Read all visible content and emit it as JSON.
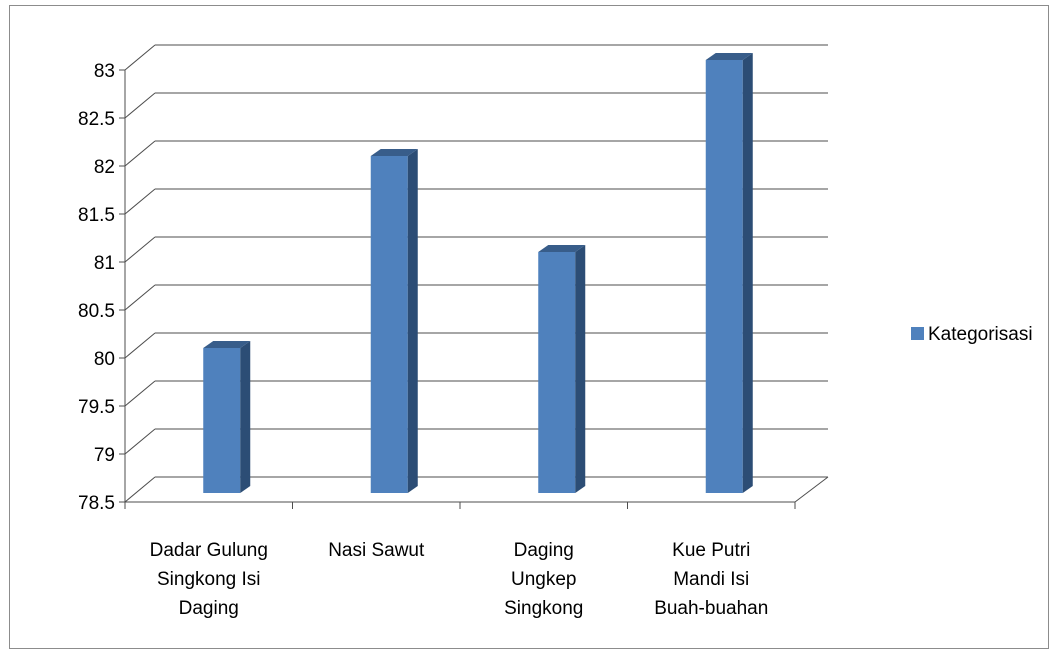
{
  "chart_data": {
    "type": "bar",
    "categories": [
      [
        "Dadar Gulung",
        "Singkong Isi",
        "Daging"
      ],
      [
        "Nasi Sawut"
      ],
      [
        "Daging",
        "Ungkep",
        "Singkong"
      ],
      [
        "Kue Putri",
        "Mandi Isi",
        "Buah-buahan"
      ]
    ],
    "series": [
      {
        "name": "Kategorisasi",
        "values": [
          80,
          82,
          81,
          83
        ]
      }
    ],
    "ylim": [
      78.5,
      83
    ],
    "yticks": [
      "78.5",
      "79",
      "79.5",
      "80",
      "80.5",
      "81",
      "81.5",
      "82",
      "82.5",
      "83"
    ],
    "grid": true,
    "legend_position": "right",
    "colors": {
      "bar_front": "#4f81bd",
      "bar_side": "#2c4d75",
      "bar_top": "#385d8a",
      "grid": "#4d4d4d"
    }
  }
}
